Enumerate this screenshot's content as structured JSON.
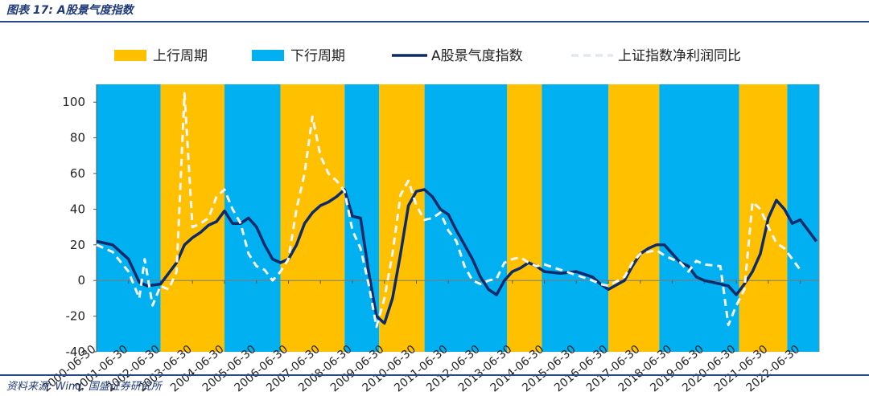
{
  "title": "图表 17:  A股景气度指数",
  "source": "资料来源:  Wind,  国盛证券研究所",
  "chart_data": {
    "type": "line",
    "ylim": [
      -40,
      110
    ],
    "yticks": [
      -40,
      -20,
      0,
      20,
      40,
      60,
      80,
      100
    ],
    "xlim": [
      "2000-06-30",
      "2023-01-31"
    ],
    "xtick_labels": [
      "2000-06-30",
      "2001-06-30",
      "2002-06-30",
      "2003-06-30",
      "2004-06-30",
      "2005-06-30",
      "2006-06-30",
      "2007-06-30",
      "2008-06-30",
      "2009-06-30",
      "2010-06-30",
      "2011-06-30",
      "2012-06-30",
      "2013-06-30",
      "2014-06-30",
      "2015-06-30",
      "2016-06-30",
      "2017-06-30",
      "2018-06-30",
      "2019-06-30",
      "2020-06-30",
      "2021-06-30",
      "2022-06-30"
    ],
    "legend": [
      {
        "name": "上行周期",
        "kind": "band",
        "color": "#FFC000"
      },
      {
        "name": "下行周期",
        "kind": "band",
        "color": "#00B0F0"
      },
      {
        "name": "A股景气度指数",
        "kind": "line",
        "color": "#0D2A6B"
      },
      {
        "name": "上证指数净利润同比",
        "kind": "dash",
        "color": "#FFFFFF"
      }
    ],
    "bands": [
      {
        "start": "2000-06-30",
        "end": "2002-07-01",
        "type": "下行周期"
      },
      {
        "start": "2002-07-01",
        "end": "2004-06-30",
        "type": "上行周期"
      },
      {
        "start": "2004-06-30",
        "end": "2006-03-31",
        "type": "下行周期"
      },
      {
        "start": "2006-03-31",
        "end": "2008-04-01",
        "type": "上行周期"
      },
      {
        "start": "2008-04-01",
        "end": "2009-05-01",
        "type": "下行周期"
      },
      {
        "start": "2009-05-01",
        "end": "2010-10-01",
        "type": "上行周期"
      },
      {
        "start": "2010-10-01",
        "end": "2013-05-01",
        "type": "下行周期"
      },
      {
        "start": "2013-05-01",
        "end": "2014-06-01",
        "type": "上行周期"
      },
      {
        "start": "2014-06-01",
        "end": "2016-07-01",
        "type": "下行周期"
      },
      {
        "start": "2016-07-01",
        "end": "2018-02-01",
        "type": "上行周期"
      },
      {
        "start": "2018-02-01",
        "end": "2020-08-01",
        "type": "下行周期"
      },
      {
        "start": "2020-08-01",
        "end": "2022-02-01",
        "type": "上行周期"
      },
      {
        "start": "2022-02-01",
        "end": "2023-01-31",
        "type": "下行周期"
      }
    ],
    "series": [
      {
        "name": "A股景气度指数",
        "style": "solid",
        "color": "#0D2A6B",
        "points": [
          [
            "2000-06-30",
            22
          ],
          [
            "2000-12-31",
            20
          ],
          [
            "2001-06-30",
            12
          ],
          [
            "2001-10-31",
            -1
          ],
          [
            "2002-01-31",
            -3
          ],
          [
            "2002-06-30",
            -2
          ],
          [
            "2002-12-31",
            10
          ],
          [
            "2003-03-31",
            20
          ],
          [
            "2003-06-30",
            24
          ],
          [
            "2003-09-30",
            27
          ],
          [
            "2003-12-31",
            31
          ],
          [
            "2004-03-31",
            33
          ],
          [
            "2004-06-30",
            39
          ],
          [
            "2004-09-30",
            32
          ],
          [
            "2004-12-31",
            32
          ],
          [
            "2005-03-31",
            35
          ],
          [
            "2005-06-30",
            30
          ],
          [
            "2005-09-30",
            20
          ],
          [
            "2005-12-31",
            12
          ],
          [
            "2006-03-31",
            10
          ],
          [
            "2006-06-30",
            12
          ],
          [
            "2006-09-30",
            20
          ],
          [
            "2006-12-31",
            32
          ],
          [
            "2007-03-31",
            38
          ],
          [
            "2007-06-30",
            42
          ],
          [
            "2007-09-30",
            44
          ],
          [
            "2007-12-31",
            47
          ],
          [
            "2008-03-31",
            51
          ],
          [
            "2008-06-30",
            36
          ],
          [
            "2008-09-30",
            35
          ],
          [
            "2008-12-31",
            5
          ],
          [
            "2009-03-31",
            -20
          ],
          [
            "2009-06-30",
            -24
          ],
          [
            "2009-09-30",
            -10
          ],
          [
            "2009-12-31",
            15
          ],
          [
            "2010-03-31",
            42
          ],
          [
            "2010-06-30",
            50
          ],
          [
            "2010-09-30",
            51
          ],
          [
            "2010-12-31",
            47
          ],
          [
            "2011-03-31",
            40
          ],
          [
            "2011-06-30",
            37
          ],
          [
            "2011-09-30",
            28
          ],
          [
            "2011-12-31",
            20
          ],
          [
            "2012-03-31",
            12
          ],
          [
            "2012-06-30",
            2
          ],
          [
            "2012-09-30",
            -5
          ],
          [
            "2012-12-31",
            -8
          ],
          [
            "2013-03-31",
            0
          ],
          [
            "2013-06-30",
            5
          ],
          [
            "2013-09-30",
            7
          ],
          [
            "2013-12-31",
            10
          ],
          [
            "2014-03-31",
            8
          ],
          [
            "2014-06-30",
            5
          ],
          [
            "2014-12-31",
            4
          ],
          [
            "2015-06-30",
            5
          ],
          [
            "2015-12-31",
            2
          ],
          [
            "2016-03-31",
            -2
          ],
          [
            "2016-06-30",
            -5
          ],
          [
            "2016-12-31",
            0
          ],
          [
            "2017-03-31",
            8
          ],
          [
            "2017-06-30",
            15
          ],
          [
            "2017-09-30",
            18
          ],
          [
            "2017-12-31",
            20
          ],
          [
            "2018-03-31",
            20
          ],
          [
            "2018-06-30",
            15
          ],
          [
            "2018-09-30",
            10
          ],
          [
            "2018-12-31",
            8
          ],
          [
            "2019-03-31",
            2
          ],
          [
            "2019-06-30",
            0
          ],
          [
            "2019-12-31",
            -2
          ],
          [
            "2020-03-31",
            -3
          ],
          [
            "2020-06-30",
            -8
          ],
          [
            "2020-09-30",
            -2
          ],
          [
            "2020-12-31",
            5
          ],
          [
            "2021-03-31",
            15
          ],
          [
            "2021-06-30",
            35
          ],
          [
            "2021-09-30",
            45
          ],
          [
            "2021-12-31",
            40
          ],
          [
            "2022-03-31",
            32
          ],
          [
            "2022-06-30",
            34
          ],
          [
            "2022-09-30",
            28
          ],
          [
            "2022-12-31",
            22
          ]
        ]
      },
      {
        "name": "上证指数净利润同比",
        "style": "dashed",
        "color": "#FFFFFF",
        "points": [
          [
            "2000-06-30",
            20
          ],
          [
            "2000-12-31",
            16
          ],
          [
            "2001-06-30",
            5
          ],
          [
            "2001-10-31",
            -10
          ],
          [
            "2001-12-31",
            12
          ],
          [
            "2002-03-31",
            -14
          ],
          [
            "2002-06-30",
            -3
          ],
          [
            "2002-09-30",
            -5
          ],
          [
            "2002-12-31",
            5
          ],
          [
            "2003-03-31",
            105
          ],
          [
            "2003-06-30",
            30
          ],
          [
            "2003-09-30",
            32
          ],
          [
            "2003-12-31",
            35
          ],
          [
            "2004-03-31",
            47
          ],
          [
            "2004-06-30",
            51
          ],
          [
            "2004-09-30",
            40
          ],
          [
            "2004-12-31",
            32
          ],
          [
            "2005-03-31",
            15
          ],
          [
            "2005-06-30",
            8
          ],
          [
            "2005-09-30",
            6
          ],
          [
            "2005-12-31",
            0
          ],
          [
            "2006-03-31",
            5
          ],
          [
            "2006-06-30",
            12
          ],
          [
            "2006-09-30",
            40
          ],
          [
            "2006-12-31",
            60
          ],
          [
            "2007-03-31",
            92
          ],
          [
            "2007-06-30",
            70
          ],
          [
            "2007-09-30",
            60
          ],
          [
            "2007-12-31",
            56
          ],
          [
            "2008-03-31",
            50
          ],
          [
            "2008-06-30",
            28
          ],
          [
            "2008-09-30",
            18
          ],
          [
            "2008-12-31",
            -2
          ],
          [
            "2009-03-31",
            -26
          ],
          [
            "2009-06-30",
            -10
          ],
          [
            "2009-09-30",
            15
          ],
          [
            "2009-12-31",
            48
          ],
          [
            "2010-03-31",
            56
          ],
          [
            "2010-06-30",
            42
          ],
          [
            "2010-09-30",
            34
          ],
          [
            "2010-12-31",
            35
          ],
          [
            "2011-03-31",
            38
          ],
          [
            "2011-06-30",
            28
          ],
          [
            "2011-09-30",
            22
          ],
          [
            "2011-12-31",
            8
          ],
          [
            "2012-03-31",
            0
          ],
          [
            "2012-06-30",
            -2
          ],
          [
            "2012-09-30",
            0
          ],
          [
            "2012-12-31",
            1
          ],
          [
            "2013-03-31",
            10
          ],
          [
            "2013-06-30",
            12
          ],
          [
            "2013-09-30",
            13
          ],
          [
            "2013-12-31",
            10
          ],
          [
            "2014-03-31",
            8
          ],
          [
            "2014-06-30",
            9
          ],
          [
            "2014-12-31",
            6
          ],
          [
            "2015-06-30",
            3
          ],
          [
            "2015-12-31",
            0
          ],
          [
            "2016-03-31",
            -2
          ],
          [
            "2016-06-30",
            -3
          ],
          [
            "2016-12-31",
            2
          ],
          [
            "2017-03-31",
            10
          ],
          [
            "2017-06-30",
            15
          ],
          [
            "2017-09-30",
            16
          ],
          [
            "2017-12-31",
            17
          ],
          [
            "2018-03-31",
            14
          ],
          [
            "2018-06-30",
            12
          ],
          [
            "2018-09-30",
            10
          ],
          [
            "2018-12-31",
            5
          ],
          [
            "2019-03-31",
            11
          ],
          [
            "2019-06-30",
            9
          ],
          [
            "2019-12-31",
            8
          ],
          [
            "2020-03-31",
            -25
          ],
          [
            "2020-06-30",
            -14
          ],
          [
            "2020-09-30",
            -5
          ],
          [
            "2020-12-31",
            44
          ],
          [
            "2021-03-31",
            40
          ],
          [
            "2021-06-30",
            30
          ],
          [
            "2021-09-30",
            21
          ],
          [
            "2021-12-31",
            18
          ],
          [
            "2022-03-31",
            12
          ],
          [
            "2022-06-30",
            6
          ]
        ]
      }
    ]
  }
}
